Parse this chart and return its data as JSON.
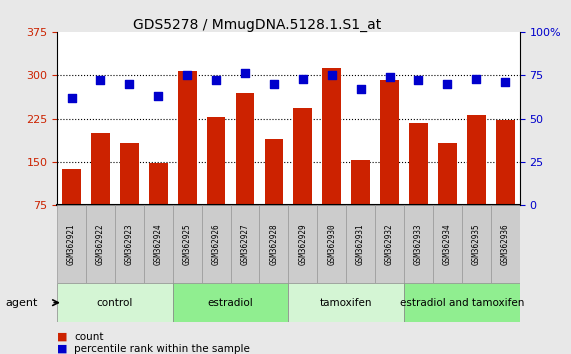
{
  "title": "GDS5278 / MmugDNA.5128.1.S1_at",
  "samples": [
    "GSM362921",
    "GSM362922",
    "GSM362923",
    "GSM362924",
    "GSM362925",
    "GSM362926",
    "GSM362927",
    "GSM362928",
    "GSM362929",
    "GSM362930",
    "GSM362931",
    "GSM362932",
    "GSM362933",
    "GSM362934",
    "GSM362935",
    "GSM362936"
  ],
  "counts": [
    138,
    200,
    182,
    148,
    307,
    227,
    270,
    190,
    243,
    312,
    153,
    292,
    218,
    182,
    232,
    222
  ],
  "percentile_ranks": [
    62,
    72,
    70,
    63,
    75,
    72,
    76,
    70,
    73,
    75,
    67,
    74,
    72,
    70,
    73,
    71
  ],
  "groups": [
    {
      "label": "control",
      "start": 0,
      "end": 3,
      "color": "#d4f5d4"
    },
    {
      "label": "estradiol",
      "start": 4,
      "end": 7,
      "color": "#90ee90"
    },
    {
      "label": "tamoxifen",
      "start": 8,
      "end": 11,
      "color": "#d4f5d4"
    },
    {
      "label": "estradiol and tamoxifen",
      "start": 12,
      "end": 15,
      "color": "#90ee90"
    }
  ],
  "bar_color": "#cc2200",
  "dot_color": "#0000cc",
  "left_ylim": [
    75,
    375
  ],
  "left_yticks": [
    75,
    150,
    225,
    300,
    375
  ],
  "right_ylim": [
    0,
    100
  ],
  "right_yticks": [
    0,
    25,
    50,
    75,
    100
  ],
  "right_yticklabels": [
    "0",
    "25",
    "50",
    "75",
    "100%"
  ],
  "bar_width": 0.65,
  "dot_size": 40,
  "agent_label": "agent",
  "legend_count": "count",
  "legend_pct": "percentile rank within the sample",
  "bg_color": "#e8e8e8",
  "plot_bg_color": "#ffffff",
  "xtick_bg_color": "#cccccc",
  "tick_label_color_left": "#cc2200",
  "tick_label_color_right": "#0000cc"
}
